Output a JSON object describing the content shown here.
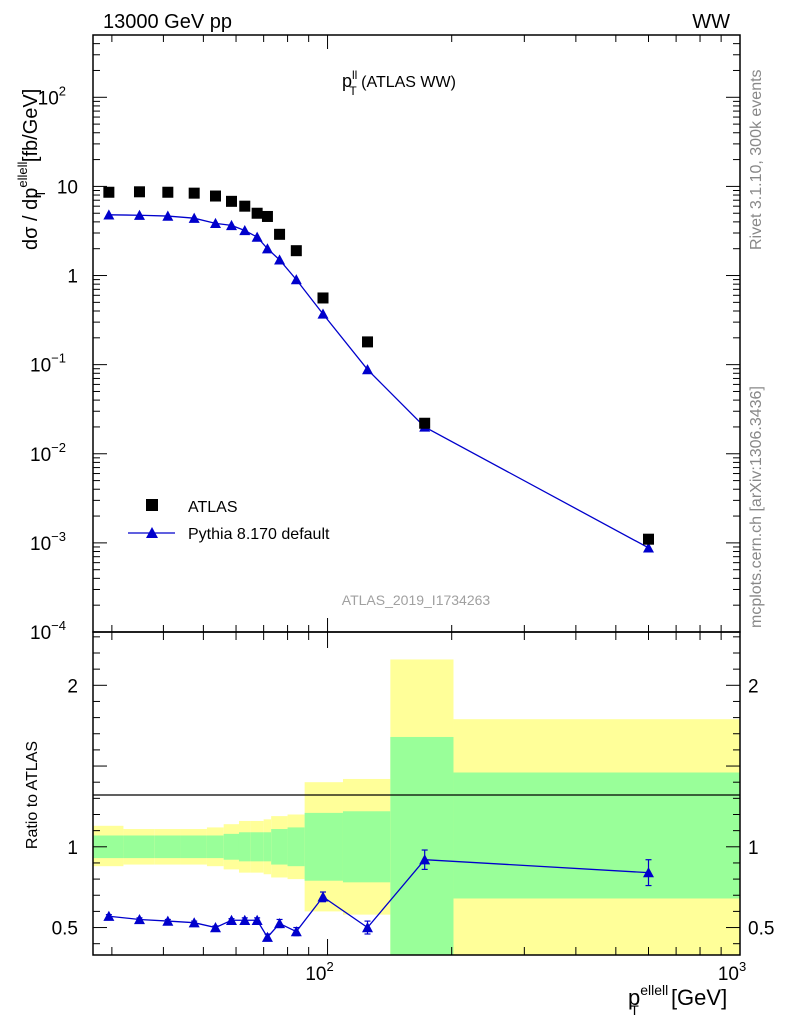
{
  "header": {
    "energy": "13000 GeV pp",
    "process": "WW",
    "side_rivet": "Rivet 3.1.10,  300k events",
    "side_site": "mcplots.cern.ch [arXiv:1306.3436]",
    "analysis_id": "ATLAS_2019_I1734263"
  },
  "legend": {
    "data_label": "ATLAS",
    "mc_label": "Pythia 8.170 default"
  },
  "colors": {
    "mc": "#0000cc",
    "data": "#000000",
    "band_inner": "#99ff99",
    "band_outer": "#ffff99"
  },
  "chart_data": [
    {
      "type": "scatter",
      "panel": "main",
      "title_base": "p",
      "title_sup": "ll",
      "title_sub": "T",
      "title_rest": " (ATLAS WW)",
      "ylabel_prefix": "dσ / dp",
      "ylabel_sup": "ellell",
      "ylabel_sub": "T",
      "ylabel_unit": " [fb/GeV]",
      "y_scale": "log",
      "x_scale": "log",
      "xlim": [
        27,
        1000
      ],
      "ylim": [
        0.0001,
        500
      ],
      "y_ticks": [
        {
          "value": 0.0001,
          "base": "10",
          "exp": "−4"
        },
        {
          "value": 0.001,
          "base": "10",
          "exp": "−3"
        },
        {
          "value": 0.01,
          "base": "10",
          "exp": "−2"
        },
        {
          "value": 0.1,
          "base": "10",
          "exp": "−1"
        },
        {
          "value": 1,
          "base": "1",
          "exp": ""
        },
        {
          "value": 10,
          "base": "10",
          "exp": ""
        },
        {
          "value": 100,
          "base": "10",
          "exp": "2"
        }
      ],
      "series": [
        {
          "name": "ATLAS",
          "marker": "square",
          "x": [
            29.5,
            35,
            41,
            47.5,
            53.5,
            58.5,
            63,
            67.5,
            71.5,
            76.5,
            84,
            97.5,
            125,
            172,
            600
          ],
          "y": [
            8.6,
            8.7,
            8.6,
            8.4,
            7.8,
            6.8,
            6.0,
            5.0,
            4.6,
            2.9,
            1.9,
            0.56,
            0.18,
            0.022,
            0.0011
          ]
        },
        {
          "name": "Pythia 8.170 default",
          "marker": "triangle",
          "x": [
            29.5,
            35,
            41,
            47.5,
            53.5,
            58.5,
            63,
            67.5,
            71.5,
            76.5,
            84,
            97.5,
            125,
            172,
            600
          ],
          "y": [
            4.8,
            4.75,
            4.65,
            4.4,
            3.85,
            3.65,
            3.2,
            2.7,
            2.0,
            1.5,
            0.9,
            0.37,
            0.088,
            0.02,
            0.00088
          ]
        }
      ]
    },
    {
      "type": "line",
      "panel": "ratio",
      "ylabel": "Ratio to ATLAS",
      "x_scale": "log",
      "y_scale": "linear",
      "xlim": [
        27,
        1000
      ],
      "ylim": [
        0.33,
        2.33
      ],
      "y_ticks": [
        "0.5",
        "1",
        "2"
      ],
      "x_tick_labels": [
        {
          "value": 100,
          "base": "10",
          "exp": "2"
        },
        {
          "value": 1000,
          "base": "10",
          "exp": "3"
        }
      ],
      "xlabel_base": "p",
      "xlabel_sup": "ellell",
      "xlabel_sub": "T",
      "xlabel_unit": " [GeV]",
      "bands": [
        {
          "x0": 27,
          "x1": 32,
          "inner": [
            0.93,
            1.07
          ],
          "outer": [
            0.88,
            1.13
          ]
        },
        {
          "x0": 32,
          "x1": 38,
          "inner": [
            0.93,
            1.07
          ],
          "outer": [
            0.89,
            1.11
          ]
        },
        {
          "x0": 38,
          "x1": 44,
          "inner": [
            0.93,
            1.07
          ],
          "outer": [
            0.89,
            1.11
          ]
        },
        {
          "x0": 44,
          "x1": 51,
          "inner": [
            0.93,
            1.07
          ],
          "outer": [
            0.89,
            1.11
          ]
        },
        {
          "x0": 51,
          "x1": 56,
          "inner": [
            0.93,
            1.07
          ],
          "outer": [
            0.88,
            1.12
          ]
        },
        {
          "x0": 56,
          "x1": 61,
          "inner": [
            0.92,
            1.08
          ],
          "outer": [
            0.86,
            1.14
          ]
        },
        {
          "x0": 61,
          "x1": 65,
          "inner": [
            0.91,
            1.09
          ],
          "outer": [
            0.84,
            1.16
          ]
        },
        {
          "x0": 65,
          "x1": 70,
          "inner": [
            0.91,
            1.09
          ],
          "outer": [
            0.84,
            1.16
          ]
        },
        {
          "x0": 70,
          "x1": 73,
          "inner": [
            0.91,
            1.09
          ],
          "outer": [
            0.83,
            1.17
          ]
        },
        {
          "x0": 73,
          "x1": 80,
          "inner": [
            0.89,
            1.11
          ],
          "outer": [
            0.81,
            1.19
          ]
        },
        {
          "x0": 80,
          "x1": 88,
          "inner": [
            0.88,
            1.12
          ],
          "outer": [
            0.8,
            1.2
          ]
        },
        {
          "x0": 88,
          "x1": 109,
          "inner": [
            0.79,
            1.21
          ],
          "outer": [
            0.6,
            1.4
          ]
        },
        {
          "x0": 109,
          "x1": 142,
          "inner": [
            0.78,
            1.22
          ],
          "outer": [
            0.58,
            1.42
          ]
        },
        {
          "x0": 142,
          "x1": 202,
          "inner": [
            0.33,
            1.68
          ],
          "outer": [
            0.33,
            2.16
          ]
        },
        {
          "x0": 202,
          "x1": 1000,
          "inner": [
            0.68,
            1.46
          ],
          "outer": [
            0.33,
            1.79
          ]
        }
      ],
      "series": [
        {
          "name": "Pythia 8.170 default",
          "x": [
            29.5,
            35,
            41,
            47.5,
            53.5,
            58.5,
            63,
            67.5,
            71.5,
            76.5,
            84,
            97.5,
            125,
            172,
            600
          ],
          "y": [
            0.57,
            0.55,
            0.54,
            0.53,
            0.5,
            0.545,
            0.545,
            0.545,
            0.44,
            0.525,
            0.475,
            0.69,
            0.5,
            0.92,
            0.84
          ],
          "err": [
            0.01,
            0.01,
            0.01,
            0.01,
            0.01,
            0.01,
            0.015,
            0.015,
            0.02,
            0.025,
            0.025,
            0.03,
            0.04,
            0.06,
            0.08
          ]
        }
      ]
    }
  ]
}
